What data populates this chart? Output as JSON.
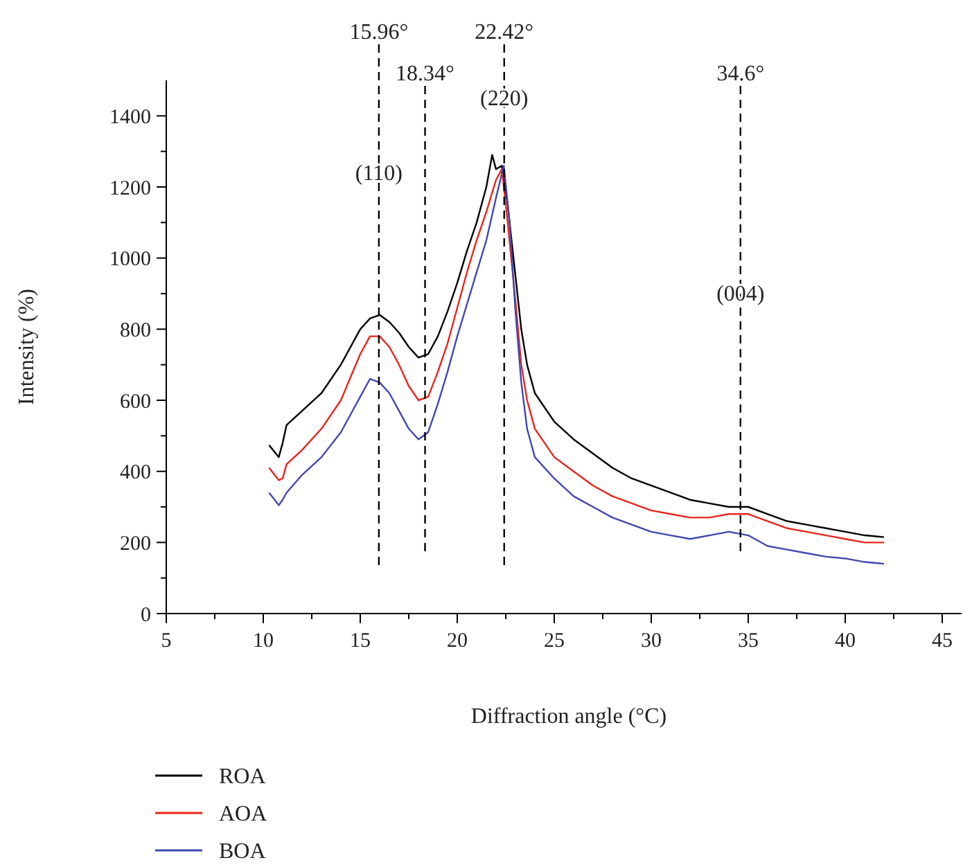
{
  "chart_data": {
    "type": "line",
    "xlabel": "Diffraction angle (°C)",
    "ylabel": "Intensity (%)",
    "xlim": [
      5,
      46.5
    ],
    "ylim": [
      0,
      1500
    ],
    "xticks": [
      5,
      {
        "value": 7.5,
        "label": null
      },
      10,
      {
        "value": 12.5,
        "label": null
      },
      15,
      {
        "value": 17.5,
        "label": null
      },
      20,
      {
        "value": 22.5,
        "label": null
      },
      25,
      {
        "value": 27.5,
        "label": null
      },
      30,
      {
        "value": 32.5,
        "label": null
      },
      35,
      {
        "value": 37.5,
        "label": null
      },
      40,
      {
        "value": 42.5,
        "label": null
      },
      45
    ],
    "yticks": [
      0,
      {
        "value": 100,
        "label": null
      },
      200,
      {
        "value": 300,
        "label": null
      },
      400,
      {
        "value": 500,
        "label": null
      },
      600,
      {
        "value": 700,
        "label": null
      },
      800,
      {
        "value": 900,
        "label": null
      },
      1000,
      {
        "value": 1100,
        "label": null
      },
      1200,
      {
        "value": 1300,
        "label": null
      },
      1400
    ],
    "grid": false,
    "legend": "bottom",
    "marker": "none",
    "line_style": "solid",
    "series": [
      {
        "name": "ROA",
        "color": "#000000",
        "x": [
          10.3,
          10.8,
          11,
          11.2,
          12,
          13,
          14,
          15,
          15.5,
          16,
          16.5,
          17,
          17.5,
          18,
          18.5,
          19,
          19.5,
          20,
          20.5,
          21,
          21.5,
          21.8,
          22,
          22.3,
          22.6,
          23,
          23.3,
          23.6,
          24,
          25,
          26,
          27,
          28,
          29,
          30,
          31,
          32,
          33,
          34,
          35,
          36,
          37,
          38,
          39,
          40,
          41,
          42
        ],
        "values": [
          474,
          440,
          480,
          530,
          570,
          620,
          700,
          800,
          830,
          840,
          820,
          790,
          750,
          720,
          730,
          780,
          850,
          930,
          1020,
          1100,
          1200,
          1290,
          1250,
          1260,
          1150,
          950,
          800,
          700,
          620,
          540,
          490,
          450,
          410,
          380,
          360,
          340,
          320,
          310,
          300,
          300,
          280,
          260,
          250,
          240,
          230,
          220,
          215
        ]
      },
      {
        "name": "AOA",
        "color": "#e8251b",
        "x": [
          10.3,
          10.8,
          11,
          11.2,
          12,
          13,
          14,
          15,
          15.5,
          16,
          16.5,
          17,
          17.5,
          18,
          18.5,
          19,
          19.5,
          20,
          20.5,
          21,
          21.5,
          22,
          22.3,
          22.6,
          23,
          23.3,
          23.6,
          24,
          25,
          26,
          27,
          28,
          29,
          30,
          31,
          32,
          33,
          34,
          35,
          36,
          37,
          38,
          39,
          40,
          41,
          42
        ],
        "values": [
          410,
          375,
          380,
          420,
          460,
          520,
          600,
          730,
          780,
          780,
          750,
          700,
          640,
          600,
          610,
          680,
          760,
          860,
          960,
          1050,
          1130,
          1220,
          1250,
          1100,
          880,
          700,
          600,
          520,
          440,
          400,
          360,
          330,
          310,
          290,
          280,
          270,
          270,
          280,
          280,
          260,
          240,
          230,
          220,
          210,
          200,
          200
        ]
      },
      {
        "name": "BOA",
        "color": "#3f48b0",
        "x": [
          10.3,
          10.8,
          11,
          11.2,
          12,
          13,
          14,
          15,
          15.5,
          16,
          16.5,
          17,
          17.5,
          18,
          18.5,
          19,
          19.5,
          20,
          20.5,
          21,
          21.5,
          22,
          22.4,
          22.7,
          23,
          23.3,
          23.6,
          24,
          25,
          26,
          27,
          28,
          29,
          30,
          31,
          32,
          33,
          34,
          35,
          36,
          37,
          38,
          39,
          40,
          41,
          42
        ],
        "values": [
          340,
          305,
          320,
          340,
          390,
          440,
          510,
          610,
          660,
          650,
          620,
          570,
          520,
          490,
          510,
          590,
          680,
          780,
          870,
          960,
          1050,
          1170,
          1260,
          1100,
          850,
          650,
          520,
          440,
          380,
          330,
          300,
          270,
          250,
          230,
          220,
          210,
          220,
          230,
          220,
          190,
          180,
          170,
          160,
          155,
          145,
          140
        ]
      }
    ],
    "ref_lines": [
      {
        "axis": "x",
        "value": 15.96,
        "label": "15.96°",
        "color": "#000000",
        "line_style": "dashed"
      },
      {
        "axis": "x",
        "value": 18.34,
        "label": "18.34°",
        "color": "#000000",
        "line_style": "dashed"
      },
      {
        "axis": "x",
        "value": 22.42,
        "label": "22.42°",
        "color": "#000000",
        "line_style": "dashed"
      },
      {
        "axis": "x",
        "value": 34.6,
        "label": "34.6°",
        "color": "#000000",
        "line_style": "dashed"
      }
    ],
    "annotations": [
      {
        "text": "(110)",
        "x": 15.96,
        "y": 1220
      },
      {
        "text": "(220)",
        "x": 22.42,
        "y": 1430
      },
      {
        "text": "(004)",
        "x": 34.6,
        "y": 880
      }
    ]
  }
}
